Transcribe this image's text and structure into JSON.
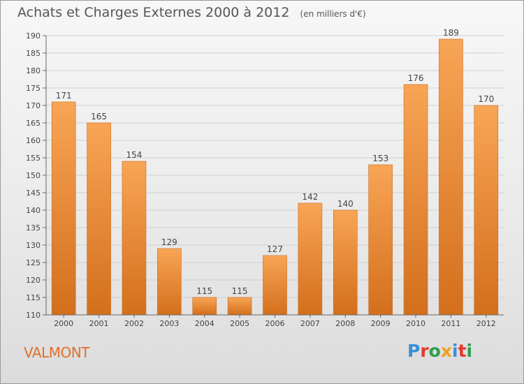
{
  "header": {
    "title": "Achats et Charges Externes 2000 à 2012",
    "subtitle": "(en milliers d'€)"
  },
  "commune_name": "VALMONT",
  "logo": {
    "text": "Proxiti",
    "letters": [
      "P",
      "r",
      "o",
      "x",
      "i",
      "t",
      "i"
    ],
    "colors": [
      "#3a8fd4",
      "#e8382b",
      "#2e9e4b",
      "#f0a020",
      "#3a8fd4",
      "#e8382b",
      "#2e9e4b"
    ]
  },
  "colors": {
    "bar_light": "#f8a556",
    "bar_dark": "#d36f1c",
    "title_text": "#555555",
    "commune_text": "#e0702a"
  },
  "chart_data": {
    "type": "bar",
    "title": "Achats et Charges Externes 2000 à 2012",
    "subtitle": "(en milliers d'€)",
    "categories": [
      "2000",
      "2001",
      "2002",
      "2003",
      "2004",
      "2005",
      "2006",
      "2007",
      "2008",
      "2009",
      "2010",
      "2011",
      "2012"
    ],
    "values": [
      171,
      165,
      154,
      129,
      115,
      115,
      127,
      142,
      140,
      153,
      176,
      189,
      170
    ],
    "ylim": [
      110,
      190
    ],
    "yticks": [
      110,
      115,
      120,
      125,
      130,
      135,
      140,
      145,
      150,
      155,
      160,
      165,
      170,
      175,
      180,
      185,
      190
    ],
    "grid": true,
    "data_labels": true
  }
}
